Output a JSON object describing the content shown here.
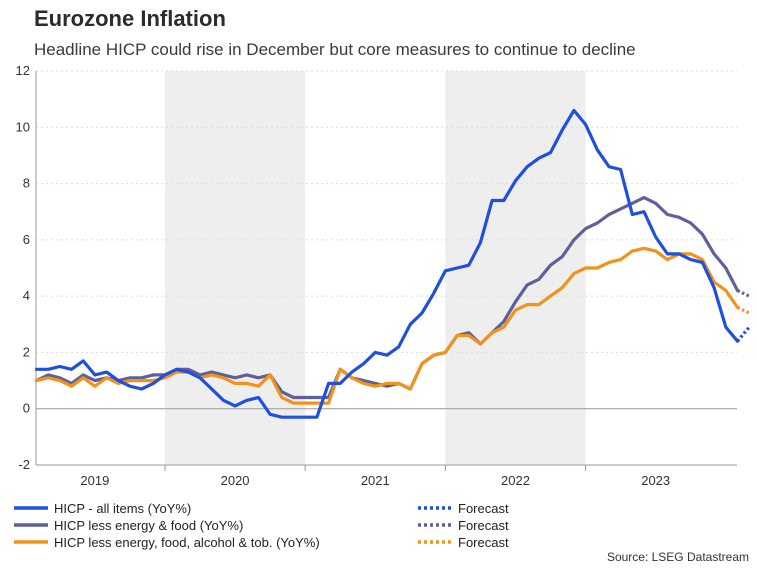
{
  "header": {
    "title": "Eurozone Inflation",
    "subtitle": "Headline HICP could rise in December but core measures to continue to decline"
  },
  "source": "Source: LSEG Datastream",
  "chart_data": {
    "type": "line",
    "title": "Eurozone Inflation",
    "subtitle": "Headline HICP could rise in December but core measures to continue to decline",
    "xlabel": "",
    "ylabel": "",
    "ylim": [
      -2,
      12
    ],
    "yticks": [
      -2,
      0,
      2,
      4,
      6,
      8,
      10,
      12
    ],
    "xlim": [
      2018.58,
      2023.58
    ],
    "x_tick_labels": [
      {
        "label": "2019",
        "center": 2019.0
      },
      {
        "label": "2020",
        "center": 2020.0
      },
      {
        "label": "2021",
        "center": 2021.0
      },
      {
        "label": "2022",
        "center": 2022.0
      },
      {
        "label": "2023",
        "center": 2023.0
      }
    ],
    "year_boundaries": [
      2019.5,
      2020.5,
      2021.5,
      2022.5
    ],
    "shaded_ranges": [
      [
        2019.5,
        2020.5
      ],
      [
        2021.5,
        2022.5
      ]
    ],
    "grid": true,
    "start_month": {
      "year": 2018,
      "month": 8
    },
    "series": [
      {
        "name": "HICP - all items (YoY%)",
        "color": "#1f4fe0",
        "values": [
          1.4,
          1.4,
          1.5,
          1.4,
          1.7,
          1.2,
          1.3,
          1.0,
          0.8,
          0.7,
          0.9,
          1.2,
          1.4,
          1.3,
          1.1,
          0.7,
          0.3,
          0.1,
          0.3,
          0.4,
          -0.2,
          -0.3,
          -0.3,
          -0.3,
          -0.3,
          0.9,
          0.9,
          1.3,
          1.6,
          2.0,
          1.9,
          2.2,
          3.0,
          3.4,
          4.1,
          4.9,
          5.0,
          5.1,
          5.9,
          7.4,
          7.4,
          8.1,
          8.6,
          8.9,
          9.1,
          9.9,
          10.6,
          10.1,
          9.2,
          8.6,
          8.5,
          6.9,
          7.0,
          6.1,
          5.5,
          5.5,
          5.3,
          5.2,
          4.3,
          2.9,
          2.4
        ],
        "forecast": {
          "name": "Forecast",
          "values": [
            2.4,
            2.9
          ]
        }
      },
      {
        "name": "HICP less energy & food (YoY%)",
        "color": "#5f5f9c",
        "values": [
          1.0,
          1.2,
          1.1,
          0.9,
          1.2,
          1.0,
          1.1,
          1.0,
          1.1,
          1.1,
          1.2,
          1.2,
          1.4,
          1.4,
          1.2,
          1.3,
          1.2,
          1.1,
          1.2,
          1.1,
          1.2,
          0.6,
          0.4,
          0.4,
          0.4,
          0.4,
          1.4,
          1.1,
          1.0,
          0.9,
          0.8,
          0.9,
          0.7,
          1.6,
          1.9,
          2.0,
          2.6,
          2.7,
          2.3,
          2.7,
          3.1,
          3.8,
          4.4,
          4.6,
          5.1,
          5.4,
          6.0,
          6.4,
          6.6,
          6.9,
          7.1,
          7.3,
          7.5,
          7.3,
          6.9,
          6.8,
          6.6,
          6.2,
          5.5,
          5.0,
          4.2
        ],
        "forecast": {
          "name": "Forecast",
          "values": [
            4.2,
            4.0
          ]
        }
      },
      {
        "name": "HICP less energy, food, alcohol & tob. (YoY%)",
        "color": "#f29319",
        "values": [
          1.0,
          1.1,
          1.0,
          0.8,
          1.1,
          0.8,
          1.1,
          0.9,
          1.0,
          1.0,
          1.0,
          1.1,
          1.3,
          1.3,
          1.1,
          1.2,
          1.1,
          0.9,
          0.9,
          0.8,
          1.2,
          0.4,
          0.2,
          0.2,
          0.2,
          0.2,
          1.4,
          1.1,
          0.9,
          0.8,
          0.9,
          0.9,
          0.7,
          1.6,
          1.9,
          2.0,
          2.6,
          2.6,
          2.3,
          2.7,
          2.9,
          3.5,
          3.7,
          3.7,
          4.0,
          4.3,
          4.8,
          5.0,
          5.0,
          5.2,
          5.3,
          5.6,
          5.7,
          5.6,
          5.3,
          5.5,
          5.5,
          5.3,
          4.5,
          4.2,
          3.6
        ],
        "forecast": {
          "name": "Forecast",
          "values": [
            3.6,
            3.4
          ]
        }
      }
    ],
    "legend": [
      {
        "label": "HICP - all items (YoY%)",
        "color": "#1f4fe0",
        "style": "solid"
      },
      {
        "label": "HICP less energy & food (YoY%)",
        "color": "#5f5f9c",
        "style": "solid"
      },
      {
        "label": "HICP less energy, food, alcohol & tob. (YoY%)",
        "color": "#f29319",
        "style": "solid"
      },
      {
        "label": "Forecast",
        "color": "#1f4fe0",
        "style": "dotted"
      },
      {
        "label": "Forecast",
        "color": "#5f5f9c",
        "style": "dotted"
      },
      {
        "label": "Forecast",
        "color": "#f29319",
        "style": "dotted"
      }
    ],
    "legend_placement": "bottom"
  }
}
